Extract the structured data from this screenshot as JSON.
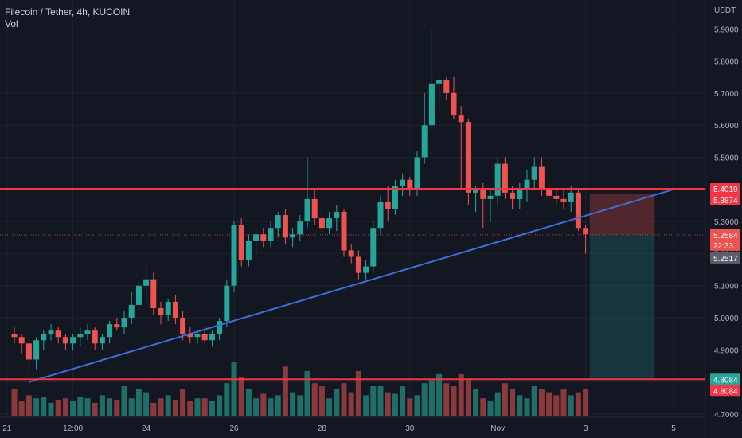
{
  "header": {
    "symbol_title": "Filecoin / Tether, 4h, KUCOIN",
    "volume_label": "Vol"
  },
  "axis": {
    "unit": "USDT"
  },
  "colors": {
    "background": "#131722",
    "up": "#26a69a",
    "down": "#ef5350",
    "up_volume": "#1f6f68",
    "down_volume": "#8a3a3d",
    "trendline": "#3d6fd6",
    "level_line": "#f23645",
    "grid": "#1e222d",
    "text": "#b2b5be",
    "label_text": "#ffffff",
    "gray_label": "#5d606b"
  },
  "chart_data": {
    "type": "candlestick",
    "title": "Filecoin / Tether, 4h, KUCOIN",
    "y_unit": "USDT",
    "ylim": [
      4.69,
      5.99
    ],
    "y_ticks": [
      "5.9000",
      "5.8000",
      "5.7000",
      "5.6000",
      "5.5000",
      "5.4000",
      "5.3000",
      "5.2000",
      "5.1000",
      "5.0000",
      "4.9000",
      "4.8000",
      "4.7000"
    ],
    "x_ticks": [
      {
        "label": "21",
        "index": -1
      },
      {
        "label": "12:00",
        "index": 8
      },
      {
        "label": "24",
        "index": 18
      },
      {
        "label": "26",
        "index": 30
      },
      {
        "label": "28",
        "index": 42
      },
      {
        "label": "30",
        "index": 54
      },
      {
        "label": "Nov",
        "index": 66
      },
      {
        "label": "3",
        "index": 78
      },
      {
        "label": "5",
        "index": 90
      }
    ],
    "candles": [
      [
        4.95,
        4.97,
        4.92,
        4.94
      ],
      [
        4.94,
        4.95,
        4.89,
        4.92
      ],
      [
        4.92,
        4.93,
        4.83,
        4.87
      ],
      [
        4.87,
        4.94,
        4.84,
        4.93
      ],
      [
        4.93,
        4.96,
        4.9,
        4.95
      ],
      [
        4.95,
        4.98,
        4.93,
        4.96
      ],
      [
        4.96,
        4.97,
        4.92,
        4.94
      ],
      [
        4.94,
        4.95,
        4.9,
        4.92
      ],
      [
        4.92,
        4.95,
        4.9,
        4.94
      ],
      [
        4.94,
        4.97,
        4.91,
        4.95
      ],
      [
        4.95,
        4.98,
        4.93,
        4.96
      ],
      [
        4.96,
        4.97,
        4.9,
        4.92
      ],
      [
        4.92,
        4.95,
        4.9,
        4.94
      ],
      [
        4.94,
        4.99,
        4.92,
        4.98
      ],
      [
        4.98,
        5.0,
        4.96,
        4.97
      ],
      [
        4.97,
        5.02,
        4.95,
        5.0
      ],
      [
        5.0,
        5.08,
        4.98,
        5.04
      ],
      [
        5.04,
        5.12,
        5.02,
        5.1
      ],
      [
        5.1,
        5.16,
        5.05,
        5.12
      ],
      [
        5.12,
        5.14,
        5.01,
        5.03
      ],
      [
        5.03,
        5.05,
        4.98,
        5.01
      ],
      [
        5.01,
        5.06,
        4.99,
        5.05
      ],
      [
        5.05,
        5.07,
        4.98,
        5.0
      ],
      [
        5.0,
        5.02,
        4.93,
        4.95
      ],
      [
        4.95,
        4.97,
        4.92,
        4.94
      ],
      [
        4.94,
        4.96,
        4.92,
        4.95
      ],
      [
        4.95,
        4.97,
        4.92,
        4.93
      ],
      [
        4.93,
        4.96,
        4.91,
        4.95
      ],
      [
        4.95,
        5.0,
        4.93,
        4.99
      ],
      [
        4.99,
        5.12,
        4.97,
        5.1
      ],
      [
        5.1,
        5.3,
        5.08,
        5.29
      ],
      [
        5.29,
        5.31,
        5.16,
        5.18
      ],
      [
        5.18,
        5.26,
        5.16,
        5.24
      ],
      [
        5.24,
        5.28,
        5.2,
        5.26
      ],
      [
        5.26,
        5.28,
        5.22,
        5.24
      ],
      [
        5.24,
        5.3,
        5.22,
        5.28
      ],
      [
        5.28,
        5.33,
        5.25,
        5.32
      ],
      [
        5.32,
        5.34,
        5.23,
        5.25
      ],
      [
        5.25,
        5.28,
        5.22,
        5.26
      ],
      [
        5.26,
        5.32,
        5.24,
        5.3
      ],
      [
        5.3,
        5.5,
        5.28,
        5.37
      ],
      [
        5.37,
        5.4,
        5.29,
        5.31
      ],
      [
        5.31,
        5.34,
        5.26,
        5.28
      ],
      [
        5.28,
        5.33,
        5.26,
        5.31
      ],
      [
        5.31,
        5.35,
        5.27,
        5.33
      ],
      [
        5.33,
        5.34,
        5.19,
        5.21
      ],
      [
        5.21,
        5.23,
        5.17,
        5.19
      ],
      [
        5.19,
        5.21,
        5.12,
        5.14
      ],
      [
        5.14,
        5.18,
        5.12,
        5.16
      ],
      [
        5.16,
        5.3,
        5.14,
        5.28
      ],
      [
        5.28,
        5.38,
        5.26,
        5.36
      ],
      [
        5.36,
        5.41,
        5.3,
        5.34
      ],
      [
        5.34,
        5.43,
        5.32,
        5.41
      ],
      [
        5.41,
        5.45,
        5.38,
        5.43
      ],
      [
        5.43,
        5.44,
        5.38,
        5.4
      ],
      [
        5.4,
        5.52,
        5.38,
        5.5
      ],
      [
        5.5,
        5.7,
        5.48,
        5.6
      ],
      [
        5.6,
        5.9,
        5.58,
        5.73
      ],
      [
        5.73,
        5.75,
        5.66,
        5.74
      ],
      [
        5.74,
        5.75,
        5.68,
        5.7
      ],
      [
        5.7,
        5.75,
        5.62,
        5.63
      ],
      [
        5.63,
        5.66,
        5.4,
        5.61
      ],
      [
        5.61,
        5.62,
        5.35,
        5.39
      ],
      [
        5.39,
        5.41,
        5.33,
        5.4
      ],
      [
        5.4,
        5.42,
        5.28,
        5.37
      ],
      [
        5.37,
        5.4,
        5.3,
        5.38
      ],
      [
        5.38,
        5.5,
        5.35,
        5.48
      ],
      [
        5.48,
        5.5,
        5.37,
        5.39
      ],
      [
        5.39,
        5.41,
        5.34,
        5.37
      ],
      [
        5.37,
        5.42,
        5.34,
        5.4
      ],
      [
        5.4,
        5.46,
        5.36,
        5.43
      ],
      [
        5.43,
        5.5,
        5.4,
        5.47
      ],
      [
        5.47,
        5.5,
        5.38,
        5.4
      ],
      [
        5.4,
        5.42,
        5.36,
        5.38
      ],
      [
        5.38,
        5.4,
        5.35,
        5.37
      ],
      [
        5.37,
        5.4,
        5.34,
        5.36
      ],
      [
        5.36,
        5.41,
        5.33,
        5.39
      ],
      [
        5.39,
        5.4,
        5.27,
        5.28
      ],
      [
        5.28,
        5.29,
        5.2,
        5.26
      ]
    ],
    "volume": [
      18,
      10,
      14,
      12,
      13,
      9,
      11,
      12,
      10,
      13,
      12,
      9,
      14,
      12,
      11,
      20,
      12,
      18,
      16,
      9,
      12,
      14,
      11,
      18,
      10,
      12,
      12,
      10,
      14,
      22,
      36,
      26,
      18,
      12,
      15,
      12,
      14,
      33,
      16,
      14,
      30,
      22,
      20,
      12,
      18,
      22,
      16,
      30,
      14,
      20,
      20,
      16,
      15,
      20,
      12,
      14,
      22,
      24,
      28,
      22,
      20,
      28,
      24,
      18,
      12,
      10,
      16,
      22,
      18,
      14,
      12,
      20,
      18,
      16,
      14,
      18,
      14,
      16,
      18
    ],
    "levels": [
      {
        "price": 5.4019,
        "label": "5.4019"
      },
      {
        "price": 4.8084,
        "label": "4.8084"
      }
    ],
    "current_price_label": "5.2584",
    "countdown_label": "22:33",
    "high_low_label": "5.2517",
    "upper_box_label": "5.3874",
    "lower_box_label": "4.8084",
    "trendline": {
      "from": [
        2,
        4.8
      ],
      "to": [
        90,
        5.4
      ]
    },
    "position": {
      "start_index": 79,
      "end_index": 87,
      "entry": 5.2584,
      "stop": 5.3874,
      "target": 4.8084
    }
  }
}
